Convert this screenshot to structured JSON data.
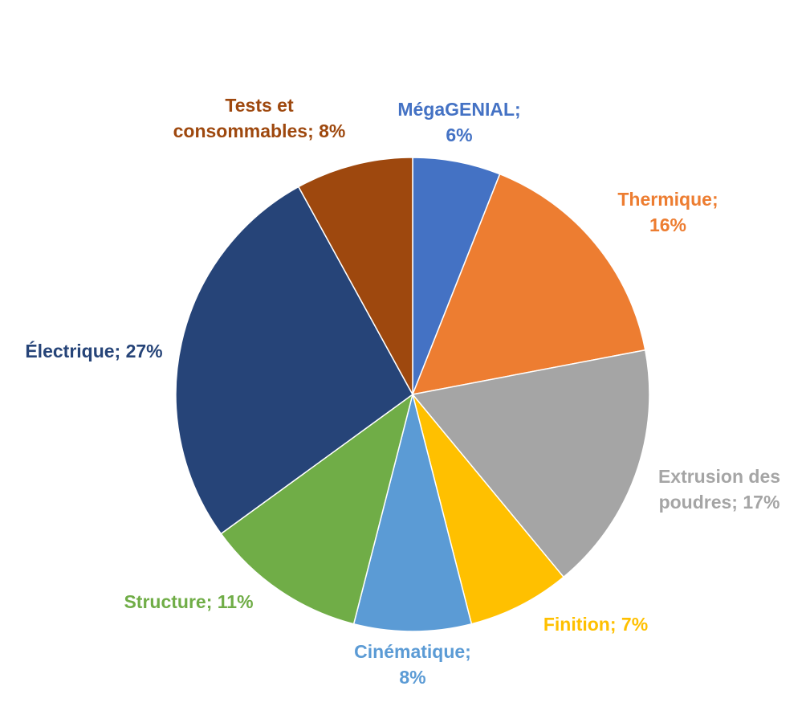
{
  "chart_data": {
    "type": "pie",
    "title": "",
    "legend": "none",
    "slices": [
      {
        "label_lines": [
          "MégaGENIAL;",
          "6%"
        ],
        "value": 6,
        "color": "#4472C4"
      },
      {
        "label_lines": [
          "Thermique;",
          "16%"
        ],
        "value": 16,
        "color": "#ED7D31"
      },
      {
        "label_lines": [
          "Extrusion des",
          "poudres; 17%"
        ],
        "value": 17,
        "color": "#A5A5A5"
      },
      {
        "label_lines": [
          "Finition; 7%"
        ],
        "value": 7,
        "color": "#FFC000"
      },
      {
        "label_lines": [
          "Cinématique;",
          "8%"
        ],
        "value": 8,
        "color": "#5B9BD5"
      },
      {
        "label_lines": [
          "Structure; 11%"
        ],
        "value": 11,
        "color": "#70AD47"
      },
      {
        "label_lines": [
          "Électrique; 27%"
        ],
        "value": 27,
        "color": "#264478"
      },
      {
        "label_lines": [
          "Tests et",
          "consommables; 8%"
        ],
        "value": 8,
        "color": "#9E480E"
      }
    ]
  }
}
